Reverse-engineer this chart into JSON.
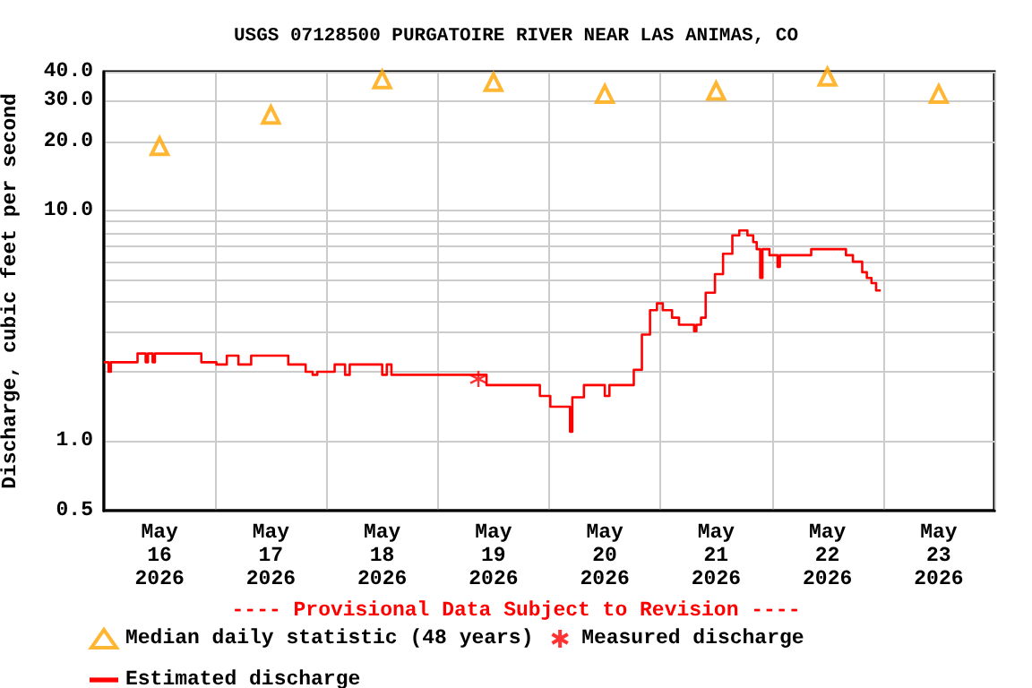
{
  "chart_data": {
    "type": "line",
    "title": "USGS 07128500 PURGATOIRE RIVER NEAR LAS ANIMAS, CO",
    "ylabel": "Discharge, cubic feet per second",
    "annotations": [
      "---- Provisional Data Subject to Revision ----"
    ],
    "log": "y",
    "grid": true,
    "legend": "bottom",
    "xlim": [
      "2026-05-16",
      "2026-05-24"
    ],
    "xticks": [
      {
        "value": "2026-05-16",
        "label": null
      },
      {
        "value": "2026-05-16T12:00",
        "label": "May\n16\n2026"
      },
      {
        "value": "2026-05-17",
        "label": null
      },
      {
        "value": "2026-05-17T12:00",
        "label": "May\n17\n2026"
      },
      {
        "value": "2026-05-18",
        "label": null
      },
      {
        "value": "2026-05-18T12:00",
        "label": "May\n18\n2026"
      },
      {
        "value": "2026-05-19",
        "label": null
      },
      {
        "value": "2026-05-19T12:00",
        "label": "May\n19\n2026"
      },
      {
        "value": "2026-05-20",
        "label": null
      },
      {
        "value": "2026-05-20T12:00",
        "label": "May\n20\n2026"
      },
      {
        "value": "2026-05-21",
        "label": null
      },
      {
        "value": "2026-05-21T12:00",
        "label": "May\n21\n2026"
      },
      {
        "value": "2026-05-22",
        "label": null
      },
      {
        "value": "2026-05-22T12:00",
        "label": "May\n22\n2026"
      },
      {
        "value": "2026-05-23",
        "label": null
      },
      {
        "value": "2026-05-23T12:00",
        "label": "May\n23\n2026"
      },
      {
        "value": "2026-05-24",
        "label": null
      }
    ],
    "ylim": [
      0.5,
      40
    ],
    "yticks": [
      {
        "value": 0.5,
        "label": "0.5"
      },
      {
        "value": 1,
        "label": "1.0"
      },
      {
        "value": 2,
        "label": null
      },
      {
        "value": 3,
        "label": null
      },
      {
        "value": 4,
        "label": null
      },
      {
        "value": 5,
        "label": null
      },
      {
        "value": 6,
        "label": null
      },
      {
        "value": 7,
        "label": null
      },
      {
        "value": 8,
        "label": null
      },
      {
        "value": 9,
        "label": null
      },
      {
        "value": 10,
        "label": "10.0"
      },
      {
        "value": 20,
        "label": "20.0"
      },
      {
        "value": 30,
        "label": "30.0"
      },
      {
        "value": 40,
        "label": "40.0"
      }
    ],
    "series": [
      {
        "name": "Median daily statistic (48 years)",
        "type": "scatter",
        "marker": "triangle",
        "color": "#ffa500",
        "x": [
          "2026-05-16T12:00",
          "2026-05-17T12:00",
          "2026-05-18T12:00",
          "2026-05-19T12:00",
          "2026-05-20T12:00",
          "2026-05-21T12:00",
          "2026-05-22T12:00",
          "2026-05-23T12:00"
        ],
        "values": [
          19,
          26,
          37,
          36,
          32,
          33,
          38,
          32
        ]
      },
      {
        "name": "Measured discharge",
        "type": "scatter",
        "marker": "cross",
        "color": "#ff0000",
        "x": [
          "2026-05-19T08:45"
        ],
        "values": [
          1.86
        ]
      },
      {
        "name": "Estimated discharge",
        "type": "step",
        "marker": "none",
        "color": "#ff0000",
        "x": [
          "2026-05-16T00:00",
          "2026-05-16T01:00",
          "2026-05-16T01:30",
          "2026-05-16T07:15",
          "2026-05-16T09:00",
          "2026-05-16T09:30",
          "2026-05-16T10:30",
          "2026-05-16T11:00",
          "2026-05-16T21:00",
          "2026-05-17T00:15",
          "2026-05-17T02:30",
          "2026-05-17T05:00",
          "2026-05-17T07:45",
          "2026-05-17T15:45",
          "2026-05-17T19:30",
          "2026-05-17T21:00",
          "2026-05-17T22:00",
          "2026-05-18T01:45",
          "2026-05-18T04:00",
          "2026-05-18T05:00",
          "2026-05-18T12:00",
          "2026-05-18T13:00",
          "2026-05-18T14:00",
          "2026-05-19T10:30",
          "2026-05-19T22:00",
          "2026-05-20T00:15",
          "2026-05-20T04:30",
          "2026-05-20T05:00",
          "2026-05-20T07:30",
          "2026-05-20T12:00",
          "2026-05-20T13:00",
          "2026-05-20T18:15",
          "2026-05-20T20:00",
          "2026-05-20T21:45",
          "2026-05-20T23:15",
          "2026-05-21T00:30",
          "2026-05-21T02:30",
          "2026-05-21T04:00",
          "2026-05-21T07:15",
          "2026-05-21T07:45",
          "2026-05-21T08:45",
          "2026-05-21T09:45",
          "2026-05-21T11:45",
          "2026-05-21T13:30",
          "2026-05-21T15:30",
          "2026-05-21T17:00",
          "2026-05-21T18:45",
          "2026-05-21T20:00",
          "2026-05-21T20:45",
          "2026-05-21T21:30",
          "2026-05-21T22:00",
          "2026-05-21T23:30",
          "2026-05-22T01:15",
          "2026-05-22T01:45",
          "2026-05-22T08:30",
          "2026-05-22T16:00",
          "2026-05-22T17:30",
          "2026-05-22T19:30",
          "2026-05-22T20:30",
          "2026-05-22T21:30",
          "2026-05-22T22:30",
          "2026-05-22T23:30"
        ],
        "values": [
          2.2,
          2.0,
          2.2,
          2.4,
          2.2,
          2.4,
          2.2,
          2.4,
          2.2,
          2.15,
          2.35,
          2.15,
          2.35,
          2.15,
          2.0,
          1.94,
          2.0,
          2.15,
          1.94,
          2.15,
          1.94,
          2.15,
          1.94,
          1.75,
          1.57,
          1.41,
          1.1,
          1.55,
          1.75,
          1.57,
          1.75,
          2.04,
          2.9,
          3.7,
          3.96,
          3.7,
          3.43,
          3.2,
          3.0,
          3.2,
          3.43,
          4.4,
          5.3,
          6.5,
          7.8,
          8.2,
          7.8,
          7.3,
          6.8,
          5.1,
          6.8,
          6.4,
          5.7,
          6.4,
          6.8,
          6.4,
          6.0,
          5.4,
          5.1,
          4.85,
          4.5,
          4.5
        ]
      }
    ]
  }
}
